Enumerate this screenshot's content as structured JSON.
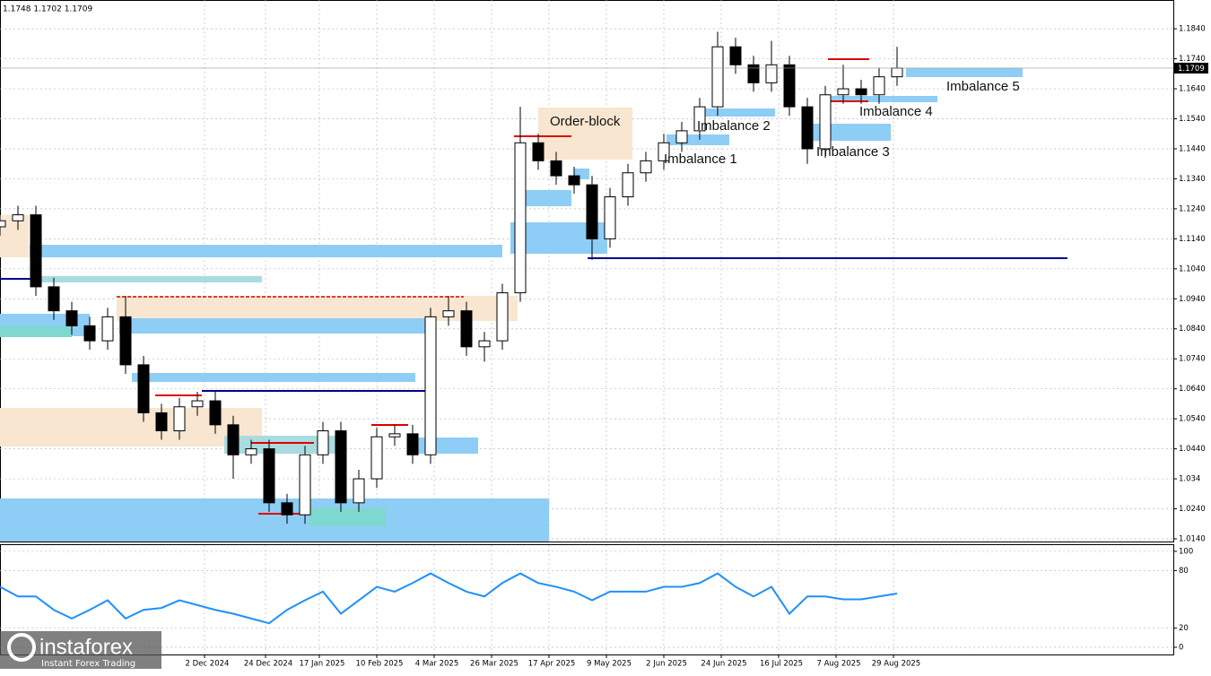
{
  "chart_data": [
    {
      "type": "candlestick",
      "header": "1.1748 1.1702 1.1709",
      "last_price": 1.1709,
      "annotations": [
        "Order-block",
        "Imbalance 1",
        "Imbalance 2",
        "Imbalance 3",
        "Imbalance 4",
        "Imbalance 5"
      ],
      "color": "#000000",
      "x": [
        0,
        5,
        10,
        15,
        20,
        25,
        30,
        35,
        40,
        45,
        50,
        55,
        60,
        65,
        70,
        75,
        80,
        85,
        90,
        95,
        100,
        105,
        110,
        115,
        120,
        125,
        130,
        135,
        140,
        145,
        150,
        155,
        160,
        165,
        170,
        175,
        180,
        185,
        190,
        195,
        200,
        205,
        210,
        215,
        220,
        225,
        230,
        235,
        240,
        245,
        250
      ],
      "open": [
        1.118,
        1.12,
        1.122,
        1.098,
        1.09,
        1.085,
        1.08,
        1.088,
        1.072,
        1.056,
        1.05,
        1.058,
        1.06,
        1.052,
        1.042,
        1.044,
        1.026,
        1.022,
        1.042,
        1.05,
        1.026,
        1.034,
        1.048,
        1.049,
        1.042,
        1.088,
        1.09,
        1.078,
        1.08,
        1.096,
        1.146,
        1.14,
        1.135,
        1.132,
        1.114,
        1.128,
        1.136,
        1.14,
        1.146,
        1.15,
        1.158,
        1.178,
        1.172,
        1.166,
        1.172,
        1.158,
        1.144,
        1.162,
        1.164,
        1.162,
        1.168
      ],
      "high": [
        1.123,
        1.125,
        1.125,
        1.101,
        1.093,
        1.088,
        1.091,
        1.095,
        1.075,
        1.059,
        1.061,
        1.063,
        1.063,
        1.055,
        1.047,
        1.047,
        1.029,
        1.045,
        1.053,
        1.053,
        1.037,
        1.051,
        1.052,
        1.052,
        1.091,
        1.095,
        1.093,
        1.083,
        1.099,
        1.158,
        1.149,
        1.143,
        1.138,
        1.135,
        1.131,
        1.139,
        1.143,
        1.149,
        1.153,
        1.161,
        1.183,
        1.181,
        1.175,
        1.18,
        1.175,
        1.161,
        1.165,
        1.172,
        1.167,
        1.171,
        1.178
      ],
      "low": [
        1.115,
        1.117,
        1.095,
        1.087,
        1.082,
        1.077,
        1.077,
        1.069,
        1.053,
        1.047,
        1.047,
        1.055,
        1.049,
        1.034,
        1.039,
        1.023,
        1.019,
        1.019,
        1.039,
        1.023,
        1.023,
        1.031,
        1.045,
        1.039,
        1.039,
        1.085,
        1.075,
        1.073,
        1.077,
        1.093,
        1.137,
        1.132,
        1.129,
        1.107,
        1.111,
        1.125,
        1.133,
        1.137,
        1.143,
        1.147,
        1.155,
        1.169,
        1.163,
        1.163,
        1.155,
        1.139,
        1.141,
        1.159,
        1.159,
        1.159,
        1.165
      ],
      "close": [
        1.12,
        1.122,
        1.098,
        1.09,
        1.085,
        1.08,
        1.088,
        1.072,
        1.056,
        1.05,
        1.058,
        1.06,
        1.052,
        1.042,
        1.044,
        1.026,
        1.022,
        1.042,
        1.05,
        1.026,
        1.034,
        1.048,
        1.049,
        1.042,
        1.088,
        1.09,
        1.078,
        1.08,
        1.096,
        1.146,
        1.14,
        1.135,
        1.132,
        1.114,
        1.128,
        1.136,
        1.14,
        1.146,
        1.15,
        1.158,
        1.178,
        1.172,
        1.166,
        1.172,
        1.158,
        1.144,
        1.162,
        1.164,
        1.162,
        1.168,
        1.1709
      ],
      "xlim": [
        0,
        327
      ],
      "xticks": [
        {
          "value": 57,
          "label": "2 Dec 2024"
        },
        {
          "value": 74,
          "label": "24 Dec 2024"
        },
        {
          "value": 89,
          "label": "17 Jan 2025"
        },
        {
          "value": 105,
          "label": "10 Feb 2025"
        },
        {
          "value": 121,
          "label": "4 Mar 2025"
        },
        {
          "value": 137,
          "label": "26 Mar 2025"
        },
        {
          "value": 153,
          "label": "17 Apr 2025"
        },
        {
          "value": 169,
          "label": "9 May 2025"
        },
        {
          "value": 185,
          "label": "2 Jun 2025"
        },
        {
          "value": 201,
          "label": "24 Jun 2025"
        },
        {
          "value": 217,
          "label": "16 Jul 2025"
        },
        {
          "value": 233,
          "label": "7 Aug 2025"
        },
        {
          "value": 249,
          "label": "29 Aug 2025"
        }
      ],
      "ylim": [
        1.0128,
        1.1936
      ],
      "yticks": [
        {
          "value": 1.014,
          "label": "1.0140"
        },
        {
          "value": 1.024,
          "label": "1.0240"
        },
        1.034,
        {
          "value": 1.044,
          "label": "1.0440"
        },
        {
          "value": 1.054,
          "label": "1.0540"
        },
        {
          "value": 1.064,
          "label": "1.0640"
        },
        {
          "value": 1.074,
          "label": "1.0740"
        },
        {
          "value": 1.084,
          "label": "1.0840"
        },
        {
          "value": 1.094,
          "label": "1.0940"
        },
        {
          "value": 1.104,
          "label": "1.1040"
        },
        {
          "value": 1.114,
          "label": "1.1140"
        },
        {
          "value": 1.124,
          "label": "1.1240"
        },
        {
          "value": 1.134,
          "label": "1.1340"
        },
        {
          "value": 1.144,
          "label": "1.1440"
        },
        {
          "value": 1.154,
          "label": "1.1540"
        },
        {
          "value": 1.164,
          "label": "1.1640"
        },
        {
          "value": 1.174,
          "label": "1.1740"
        },
        {
          "value": 1.184,
          "label": "1.1840"
        }
      ],
      "grid": true
    },
    {
      "type": "line",
      "color": "#1e90ff",
      "x": [
        0,
        5,
        10,
        15,
        20,
        25,
        30,
        35,
        40,
        45,
        50,
        55,
        60,
        65,
        70,
        75,
        80,
        85,
        90,
        95,
        100,
        105,
        110,
        115,
        120,
        125,
        130,
        135,
        140,
        145,
        150,
        155,
        160,
        165,
        170,
        175,
        180,
        185,
        190,
        195,
        200,
        205,
        210,
        215,
        220,
        225,
        230,
        235,
        240,
        245,
        250
      ],
      "values": [
        63,
        53,
        53,
        39,
        30,
        39,
        49,
        30,
        39,
        41,
        49,
        44,
        39,
        35,
        30,
        25,
        39,
        49,
        58,
        35,
        49,
        63,
        58,
        67,
        77,
        67,
        58,
        53,
        67,
        77,
        67,
        63,
        58,
        49,
        58,
        58,
        58,
        63,
        63,
        67,
        77,
        63,
        53,
        63,
        35,
        53,
        53,
        50,
        50,
        53,
        56
      ],
      "xlim": [
        0,
        327
      ],
      "ylim": [
        -7.5,
        106.5
      ],
      "yticks": [
        0,
        20,
        80,
        100
      ],
      "grid": true
    }
  ],
  "watermark": {
    "brand": "instaforex",
    "tagline": "Instant Forex Trading"
  }
}
